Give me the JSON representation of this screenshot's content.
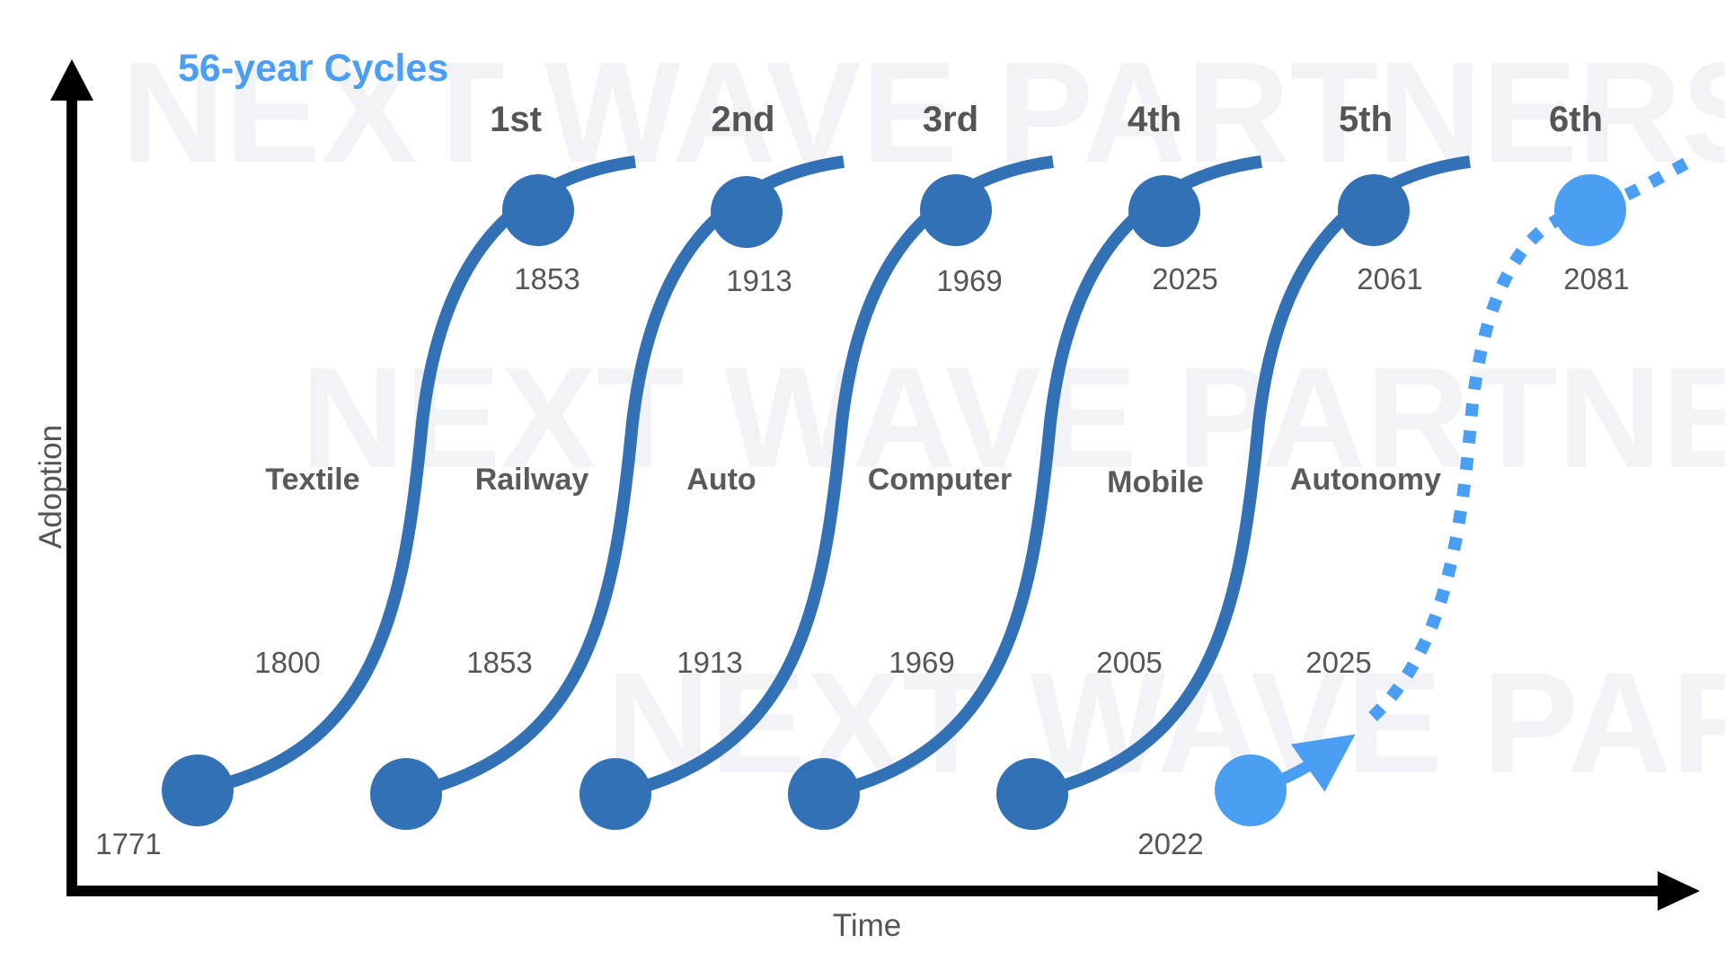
{
  "title": "56-year Cycles",
  "watermark": "NEXT WAVE PARTNERS",
  "axes": {
    "x_label": "Time",
    "y_label": "Adoption"
  },
  "colors": {
    "wave": "#3371b6",
    "future": "#4a9ff5",
    "axis": "#000000",
    "text": "#555555"
  },
  "waves": [
    {
      "ordinal": "1st",
      "technology": "Textile",
      "start_year": "1771",
      "mid_year": "1800",
      "peak_year": "1853",
      "projected": false
    },
    {
      "ordinal": "2nd",
      "technology": "Railway",
      "mid_year": "1853",
      "peak_year": "1913",
      "projected": false
    },
    {
      "ordinal": "3rd",
      "technology": "Auto",
      "mid_year": "1913",
      "peak_year": "1969",
      "projected": false
    },
    {
      "ordinal": "4th",
      "technology": "Computer",
      "mid_year": "1969",
      "peak_year": "2025",
      "projected": false
    },
    {
      "ordinal": "5th",
      "technology": "Mobile",
      "mid_year": "2005",
      "peak_year": "2061",
      "projected": false
    },
    {
      "ordinal": "6th",
      "technology": "Autonomy",
      "start_year": "2022",
      "mid_year": "2025",
      "peak_year": "2081",
      "projected": true
    }
  ]
}
